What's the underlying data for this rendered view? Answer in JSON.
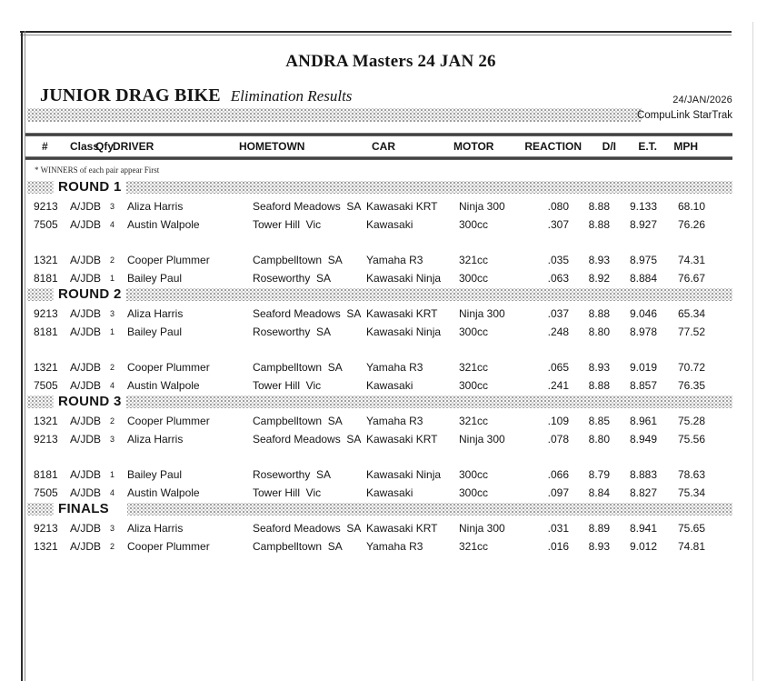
{
  "header": {
    "event_title": "ANDRA Masters 24 JAN 26",
    "category": "JUNIOR DRAG BIKE",
    "report_type": "Elimination Results",
    "date": "24/JAN/2026",
    "timing_system": "CompuLink StarTrak"
  },
  "note": "* WINNERS of each pair appear First",
  "columns": [
    "#",
    "Class",
    "Qfy",
    "DRIVER",
    "HOMETOWN",
    "CAR",
    "MOTOR",
    "REACTION",
    "D/I",
    "E.T.",
    "MPH"
  ],
  "rounds": [
    {
      "label": "ROUND 1",
      "pairs": [
        [
          {
            "num": "9213",
            "cls": "A/JDB",
            "qfy": "3",
            "driver": "Aliza Harris",
            "hometown": "Seaford Meadows  SA",
            "car": "Kawasaki KRT",
            "motor": "Ninja 300",
            "reaction": ".080",
            "di": "8.88",
            "et": "9.133",
            "mph": "68.10"
          },
          {
            "num": "7505",
            "cls": "A/JDB",
            "qfy": "4",
            "driver": "Austin Walpole",
            "hometown": "Tower Hill  Vic",
            "car": "Kawasaki",
            "motor": "300cc",
            "reaction": ".307",
            "di": "8.88",
            "et": "8.927",
            "mph": "76.26"
          }
        ],
        [
          {
            "num": "1321",
            "cls": "A/JDB",
            "qfy": "2",
            "driver": "Cooper Plummer",
            "hometown": "Campbelltown  SA",
            "car": "Yamaha R3",
            "motor": "321cc",
            "reaction": ".035",
            "di": "8.93",
            "et": "8.975",
            "mph": "74.31"
          },
          {
            "num": "8181",
            "cls": "A/JDB",
            "qfy": "1",
            "driver": "Bailey Paul",
            "hometown": "Roseworthy  SA",
            "car": "Kawasaki Ninja",
            "motor": "300cc",
            "reaction": ".063",
            "di": "8.92",
            "et": "8.884",
            "mph": "76.67"
          }
        ]
      ]
    },
    {
      "label": "ROUND 2",
      "pairs": [
        [
          {
            "num": "9213",
            "cls": "A/JDB",
            "qfy": "3",
            "driver": "Aliza Harris",
            "hometown": "Seaford Meadows  SA",
            "car": "Kawasaki KRT",
            "motor": "Ninja 300",
            "reaction": ".037",
            "di": "8.88",
            "et": "9.046",
            "mph": "65.34"
          },
          {
            "num": "8181",
            "cls": "A/JDB",
            "qfy": "1",
            "driver": "Bailey Paul",
            "hometown": "Roseworthy  SA",
            "car": "Kawasaki Ninja",
            "motor": "300cc",
            "reaction": ".248",
            "di": "8.80",
            "et": "8.978",
            "mph": "77.52"
          }
        ],
        [
          {
            "num": "1321",
            "cls": "A/JDB",
            "qfy": "2",
            "driver": "Cooper Plummer",
            "hometown": "Campbelltown  SA",
            "car": "Yamaha R3",
            "motor": "321cc",
            "reaction": ".065",
            "di": "8.93",
            "et": "9.019",
            "mph": "70.72"
          },
          {
            "num": "7505",
            "cls": "A/JDB",
            "qfy": "4",
            "driver": "Austin Walpole",
            "hometown": "Tower Hill  Vic",
            "car": "Kawasaki",
            "motor": "300cc",
            "reaction": ".241",
            "di": "8.88",
            "et": "8.857",
            "mph": "76.35"
          }
        ]
      ]
    },
    {
      "label": "ROUND 3",
      "pairs": [
        [
          {
            "num": "1321",
            "cls": "A/JDB",
            "qfy": "2",
            "driver": "Cooper Plummer",
            "hometown": "Campbelltown  SA",
            "car": "Yamaha R3",
            "motor": "321cc",
            "reaction": ".109",
            "di": "8.85",
            "et": "8.961",
            "mph": "75.28"
          },
          {
            "num": "9213",
            "cls": "A/JDB",
            "qfy": "3",
            "driver": "Aliza Harris",
            "hometown": "Seaford Meadows  SA",
            "car": "Kawasaki KRT",
            "motor": "Ninja 300",
            "reaction": ".078",
            "di": "8.80",
            "et": "8.949",
            "mph": "75.56"
          }
        ],
        [
          {
            "num": "8181",
            "cls": "A/JDB",
            "qfy": "1",
            "driver": "Bailey Paul",
            "hometown": "Roseworthy  SA",
            "car": "Kawasaki Ninja",
            "motor": "300cc",
            "reaction": ".066",
            "di": "8.79",
            "et": "8.883",
            "mph": "78.63"
          },
          {
            "num": "7505",
            "cls": "A/JDB",
            "qfy": "4",
            "driver": "Austin Walpole",
            "hometown": "Tower Hill  Vic",
            "car": "Kawasaki",
            "motor": "300cc",
            "reaction": ".097",
            "di": "8.84",
            "et": "8.827",
            "mph": "75.34"
          }
        ]
      ]
    },
    {
      "label": "FINALS",
      "pairs": [
        [
          {
            "num": "9213",
            "cls": "A/JDB",
            "qfy": "3",
            "driver": "Aliza Harris",
            "hometown": "Seaford Meadows  SA",
            "car": "Kawasaki KRT",
            "motor": "Ninja 300",
            "reaction": ".031",
            "di": "8.89",
            "et": "8.941",
            "mph": "75.65"
          },
          {
            "num": "1321",
            "cls": "A/JDB",
            "qfy": "2",
            "driver": "Cooper Plummer",
            "hometown": "Campbelltown  SA",
            "car": "Yamaha R3",
            "motor": "321cc",
            "reaction": ".016",
            "di": "8.93",
            "et": "9.012",
            "mph": "74.81"
          }
        ]
      ]
    }
  ]
}
